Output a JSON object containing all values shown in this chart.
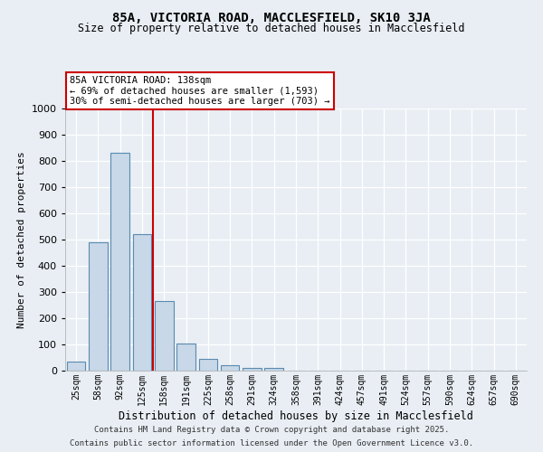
{
  "title1": "85A, VICTORIA ROAD, MACCLESFIELD, SK10 3JA",
  "title2": "Size of property relative to detached houses in Macclesfield",
  "xlabel": "Distribution of detached houses by size in Macclesfield",
  "ylabel": "Number of detached properties",
  "categories": [
    "25sqm",
    "58sqm",
    "92sqm",
    "125sqm",
    "158sqm",
    "191sqm",
    "225sqm",
    "258sqm",
    "291sqm",
    "324sqm",
    "358sqm",
    "391sqm",
    "424sqm",
    "457sqm",
    "491sqm",
    "524sqm",
    "557sqm",
    "590sqm",
    "624sqm",
    "657sqm",
    "690sqm"
  ],
  "values": [
    35,
    490,
    830,
    520,
    265,
    105,
    45,
    22,
    10,
    10,
    0,
    0,
    0,
    0,
    0,
    0,
    0,
    0,
    0,
    0,
    0
  ],
  "bar_color": "#c8d8e8",
  "bar_edge_color": "#5a8ab0",
  "red_line_x": 3.5,
  "annotation_title": "85A VICTORIA ROAD: 138sqm",
  "annotation_line1": "← 69% of detached houses are smaller (1,593)",
  "annotation_line2": "30% of semi-detached houses are larger (703) →",
  "annotation_box_color": "#ffffff",
  "annotation_border_color": "#cc0000",
  "red_line_color": "#cc0000",
  "ylim": [
    0,
    1000
  ],
  "yticks": [
    0,
    100,
    200,
    300,
    400,
    500,
    600,
    700,
    800,
    900,
    1000
  ],
  "background_color": "#e8eef4",
  "footer1": "Contains HM Land Registry data © Crown copyright and database right 2025.",
  "footer2": "Contains public sector information licensed under the Open Government Licence v3.0."
}
